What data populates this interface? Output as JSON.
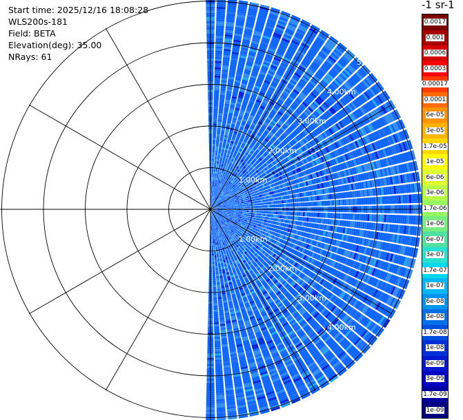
{
  "info": {
    "start_time": "Start time: 2025/12/16 18:08:28",
    "instrument": "WLS200s-181",
    "field": "Field: BETA",
    "elevation": "Elevation(deg): 35.00",
    "nrays": "NRays: 61"
  },
  "colorbar": {
    "title": "-1 sr-1",
    "entries": [
      {
        "label": "0.0017",
        "color": "#7a0000"
      },
      {
        "label": "0.001",
        "color": "#a80000"
      },
      {
        "label": "0.0006",
        "color": "#d40000"
      },
      {
        "label": "0.0003",
        "color": "#ff0000"
      },
      {
        "label": "0.00017",
        "color": "#ff3a00"
      },
      {
        "label": "0.0001",
        "color": "#ff6a00"
      },
      {
        "label": "6e-05",
        "color": "#ff9400"
      },
      {
        "label": "3e-05",
        "color": "#ffb400"
      },
      {
        "label": "1.7e-05",
        "color": "#ffd800"
      },
      {
        "label": "1e-05",
        "color": "#ffff00"
      },
      {
        "label": "6e-06",
        "color": "#e0ff30"
      },
      {
        "label": "3e-06",
        "color": "#b8ff48"
      },
      {
        "label": "1.7e-06",
        "color": "#96f860"
      },
      {
        "label": "1e-06",
        "color": "#78ec80"
      },
      {
        "label": "6e-07",
        "color": "#50e0a0"
      },
      {
        "label": "3e-07",
        "color": "#28e0d0"
      },
      {
        "label": "1.7e-07",
        "color": "#00d8f0"
      },
      {
        "label": "1e-07",
        "color": "#00b8f8"
      },
      {
        "label": "6e-08",
        "color": "#0096f0"
      },
      {
        "label": "3e-08",
        "color": "#0070e8"
      },
      {
        "label": "1.7e-08",
        "color": "#0050e0"
      },
      {
        "label": "1e-08",
        "color": "#0030d8"
      },
      {
        "label": "6e-09",
        "color": "#0018d0"
      },
      {
        "label": "3e-09",
        "color": "#0000c0"
      },
      {
        "label": "1.7e-09",
        "color": "#0000a0"
      },
      {
        "label": "1e-09",
        "color": "#000080"
      }
    ]
  },
  "range_labels_upper": [
    "1.00km",
    "2.00km",
    "3.00km",
    "4.00km",
    "5."
  ],
  "range_labels_lower": [
    "1.00km",
    "2.00km",
    "3.00km",
    "4.00km"
  ],
  "scan": {
    "nrays": 61,
    "azimuth_start_deg": 0,
    "azimuth_end_deg": 180,
    "max_range_km": 5.0,
    "ring_spacing_km": 1.0,
    "dominant_colors": [
      "#0b64ff",
      "#2e8bf0",
      "#1f6ef8"
    ],
    "speckle_colors": [
      "#0a1fd9",
      "#1fa8ea",
      "#0030d8"
    ]
  }
}
